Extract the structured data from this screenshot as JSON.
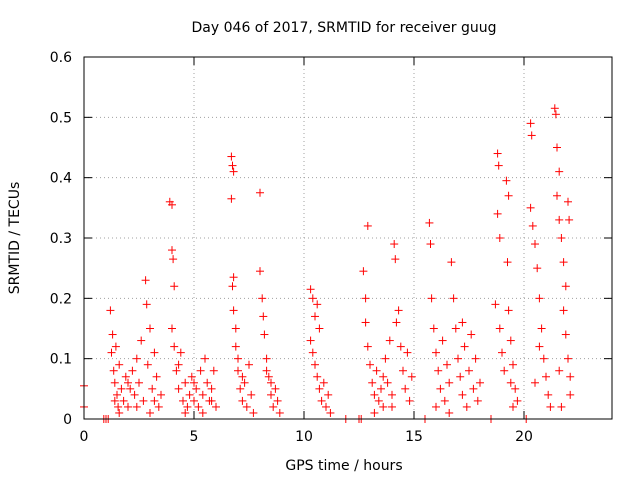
{
  "chart_data": {
    "type": "scatter",
    "title": "Day 046 of 2017, SRMTID for receiver guug",
    "xlabel": "GPS time / hours",
    "ylabel": "SRMTID / TECUs",
    "xlim": [
      0,
      24
    ],
    "ylim": [
      0,
      0.6
    ],
    "xticks": [
      0,
      5,
      10,
      15,
      20
    ],
    "yticks": [
      0,
      0.1,
      0.2,
      0.3,
      0.4,
      0.5,
      0.6
    ],
    "xtick_labels": [
      "0",
      "5",
      "10",
      "15",
      "20"
    ],
    "ytick_labels": [
      "0",
      "0.1",
      "0.2",
      "0.3",
      "0.4",
      "0.5",
      "0.6"
    ],
    "grid": true,
    "marker": "+",
    "color": "#ff0000",
    "series": [
      {
        "name": "SRMTID",
        "points": [
          [
            0.0,
            0.055
          ],
          [
            0.0,
            0.02
          ],
          [
            0.9,
            0.0
          ],
          [
            1.0,
            0.0
          ],
          [
            1.1,
            0.0
          ],
          [
            1.2,
            0.18
          ],
          [
            1.25,
            0.11
          ],
          [
            1.3,
            0.14
          ],
          [
            1.35,
            0.08
          ],
          [
            1.4,
            0.06
          ],
          [
            1.45,
            0.12
          ],
          [
            1.5,
            0.04
          ],
          [
            1.55,
            0.02
          ],
          [
            1.6,
            0.09
          ],
          [
            1.7,
            0.05
          ],
          [
            1.8,
            0.03
          ],
          [
            1.9,
            0.07
          ],
          [
            2.0,
            0.02
          ],
          [
            2.1,
            0.05
          ],
          [
            2.2,
            0.08
          ],
          [
            2.3,
            0.04
          ],
          [
            2.4,
            0.1
          ],
          [
            2.5,
            0.06
          ],
          [
            2.6,
            0.13
          ],
          [
            2.7,
            0.03
          ],
          [
            2.8,
            0.23
          ],
          [
            2.85,
            0.19
          ],
          [
            2.9,
            0.09
          ],
          [
            3.0,
            0.15
          ],
          [
            3.1,
            0.05
          ],
          [
            3.2,
            0.11
          ],
          [
            3.3,
            0.07
          ],
          [
            3.4,
            0.02
          ],
          [
            3.5,
            0.04
          ],
          [
            1.4,
            0.03
          ],
          [
            1.6,
            0.01
          ],
          [
            2.0,
            0.06
          ],
          [
            2.4,
            0.02
          ],
          [
            3.0,
            0.01
          ],
          [
            3.2,
            0.03
          ],
          [
            3.9,
            0.36
          ],
          [
            4.0,
            0.355
          ],
          [
            4.0,
            0.28
          ],
          [
            4.05,
            0.265
          ],
          [
            4.1,
            0.22
          ],
          [
            4.0,
            0.15
          ],
          [
            4.1,
            0.12
          ],
          [
            4.2,
            0.08
          ],
          [
            4.3,
            0.05
          ],
          [
            4.4,
            0.11
          ],
          [
            4.5,
            0.03
          ],
          [
            4.6,
            0.06
          ],
          [
            4.7,
            0.02
          ],
          [
            4.8,
            0.04
          ],
          [
            4.9,
            0.07
          ],
          [
            5.0,
            0.03
          ],
          [
            5.1,
            0.05
          ],
          [
            5.2,
            0.02
          ],
          [
            5.3,
            0.08
          ],
          [
            5.4,
            0.04
          ],
          [
            5.5,
            0.1
          ],
          [
            5.6,
            0.06
          ],
          [
            5.7,
            0.03
          ],
          [
            5.8,
            0.05
          ],
          [
            5.9,
            0.08
          ],
          [
            6.0,
            0.02
          ],
          [
            4.3,
            0.09
          ],
          [
            4.6,
            0.01
          ],
          [
            5.0,
            0.06
          ],
          [
            5.4,
            0.01
          ],
          [
            5.8,
            0.03
          ],
          [
            6.7,
            0.435
          ],
          [
            6.75,
            0.42
          ],
          [
            6.8,
            0.41
          ],
          [
            6.7,
            0.365
          ],
          [
            6.8,
            0.235
          ],
          [
            6.75,
            0.22
          ],
          [
            6.8,
            0.18
          ],
          [
            6.9,
            0.12
          ],
          [
            7.0,
            0.08
          ],
          [
            7.1,
            0.05
          ],
          [
            7.2,
            0.03
          ],
          [
            7.3,
            0.06
          ],
          [
            7.4,
            0.02
          ],
          [
            7.5,
            0.09
          ],
          [
            7.6,
            0.04
          ],
          [
            7.7,
            0.01
          ],
          [
            6.9,
            0.15
          ],
          [
            7.0,
            0.1
          ],
          [
            7.2,
            0.07
          ],
          [
            8.0,
            0.375
          ],
          [
            8.0,
            0.245
          ],
          [
            8.1,
            0.2
          ],
          [
            8.15,
            0.17
          ],
          [
            8.2,
            0.14
          ],
          [
            8.3,
            0.1
          ],
          [
            8.4,
            0.07
          ],
          [
            8.5,
            0.04
          ],
          [
            8.6,
            0.02
          ],
          [
            8.7,
            0.05
          ],
          [
            8.8,
            0.03
          ],
          [
            8.9,
            0.01
          ],
          [
            8.3,
            0.08
          ],
          [
            8.5,
            0.06
          ],
          [
            10.3,
            0.215
          ],
          [
            10.4,
            0.2
          ],
          [
            10.5,
            0.17
          ],
          [
            10.3,
            0.13
          ],
          [
            10.4,
            0.11
          ],
          [
            10.5,
            0.09
          ],
          [
            10.6,
            0.07
          ],
          [
            10.7,
            0.05
          ],
          [
            10.8,
            0.03
          ],
          [
            10.9,
            0.06
          ],
          [
            11.0,
            0.02
          ],
          [
            11.1,
            0.04
          ],
          [
            11.2,
            0.01
          ],
          [
            10.6,
            0.19
          ],
          [
            10.7,
            0.15
          ],
          [
            11.9,
            0.0
          ],
          [
            12.5,
            0.0
          ],
          [
            12.6,
            0.0
          ],
          [
            12.7,
            0.245
          ],
          [
            12.8,
            0.2
          ],
          [
            12.9,
            0.32
          ],
          [
            12.8,
            0.16
          ],
          [
            12.9,
            0.12
          ],
          [
            13.0,
            0.09
          ],
          [
            13.1,
            0.06
          ],
          [
            13.2,
            0.04
          ],
          [
            13.3,
            0.08
          ],
          [
            13.4,
            0.03
          ],
          [
            13.5,
            0.05
          ],
          [
            13.6,
            0.02
          ],
          [
            13.7,
            0.1
          ],
          [
            13.8,
            0.06
          ],
          [
            13.9,
            0.13
          ],
          [
            14.0,
            0.04
          ],
          [
            14.1,
            0.29
          ],
          [
            14.15,
            0.265
          ],
          [
            14.2,
            0.16
          ],
          [
            14.3,
            0.18
          ],
          [
            14.4,
            0.12
          ],
          [
            14.5,
            0.08
          ],
          [
            14.6,
            0.05
          ],
          [
            14.7,
            0.11
          ],
          [
            14.8,
            0.03
          ],
          [
            14.9,
            0.07
          ],
          [
            13.2,
            0.01
          ],
          [
            13.6,
            0.07
          ],
          [
            14.0,
            0.02
          ],
          [
            15.5,
            0.0
          ],
          [
            15.7,
            0.325
          ],
          [
            15.75,
            0.29
          ],
          [
            15.8,
            0.2
          ],
          [
            15.9,
            0.15
          ],
          [
            16.0,
            0.11
          ],
          [
            16.1,
            0.08
          ],
          [
            16.2,
            0.05
          ],
          [
            16.3,
            0.13
          ],
          [
            16.4,
            0.03
          ],
          [
            16.5,
            0.09
          ],
          [
            16.6,
            0.06
          ],
          [
            16.7,
            0.26
          ],
          [
            16.8,
            0.2
          ],
          [
            16.9,
            0.15
          ],
          [
            17.0,
            0.1
          ],
          [
            17.1,
            0.07
          ],
          [
            17.2,
            0.04
          ],
          [
            17.3,
            0.12
          ],
          [
            17.4,
            0.02
          ],
          [
            17.5,
            0.08
          ],
          [
            17.6,
            0.14
          ],
          [
            17.7,
            0.05
          ],
          [
            17.8,
            0.1
          ],
          [
            17.9,
            0.03
          ],
          [
            18.0,
            0.06
          ],
          [
            16.0,
            0.02
          ],
          [
            16.6,
            0.01
          ],
          [
            17.2,
            0.16
          ],
          [
            18.5,
            0.0
          ],
          [
            18.8,
            0.44
          ],
          [
            18.85,
            0.42
          ],
          [
            18.8,
            0.34
          ],
          [
            18.9,
            0.3
          ],
          [
            18.7,
            0.19
          ],
          [
            18.9,
            0.15
          ],
          [
            19.0,
            0.11
          ],
          [
            19.1,
            0.08
          ],
          [
            19.2,
            0.395
          ],
          [
            19.3,
            0.37
          ],
          [
            19.25,
            0.26
          ],
          [
            19.3,
            0.18
          ],
          [
            19.4,
            0.13
          ],
          [
            19.5,
            0.09
          ],
          [
            19.6,
            0.05
          ],
          [
            19.7,
            0.03
          ],
          [
            19.4,
            0.06
          ],
          [
            19.5,
            0.02
          ],
          [
            20.1,
            0.0
          ],
          [
            20.3,
            0.49
          ],
          [
            20.35,
            0.47
          ],
          [
            20.3,
            0.35
          ],
          [
            20.4,
            0.32
          ],
          [
            20.5,
            0.29
          ],
          [
            20.6,
            0.25
          ],
          [
            20.7,
            0.2
          ],
          [
            20.8,
            0.15
          ],
          [
            20.9,
            0.1
          ],
          [
            21.0,
            0.07
          ],
          [
            21.1,
            0.04
          ],
          [
            21.2,
            0.02
          ],
          [
            20.5,
            0.06
          ],
          [
            20.7,
            0.12
          ],
          [
            21.4,
            0.515
          ],
          [
            21.45,
            0.505
          ],
          [
            21.5,
            0.45
          ],
          [
            21.6,
            0.41
          ],
          [
            21.5,
            0.37
          ],
          [
            21.6,
            0.33
          ],
          [
            21.7,
            0.3
          ],
          [
            21.8,
            0.26
          ],
          [
            21.9,
            0.22
          ],
          [
            22.0,
            0.36
          ],
          [
            22.05,
            0.33
          ],
          [
            21.8,
            0.18
          ],
          [
            21.9,
            0.14
          ],
          [
            22.0,
            0.1
          ],
          [
            22.1,
            0.07
          ],
          [
            22.1,
            0.04
          ],
          [
            21.7,
            0.02
          ],
          [
            21.6,
            0.08
          ]
        ]
      }
    ]
  }
}
